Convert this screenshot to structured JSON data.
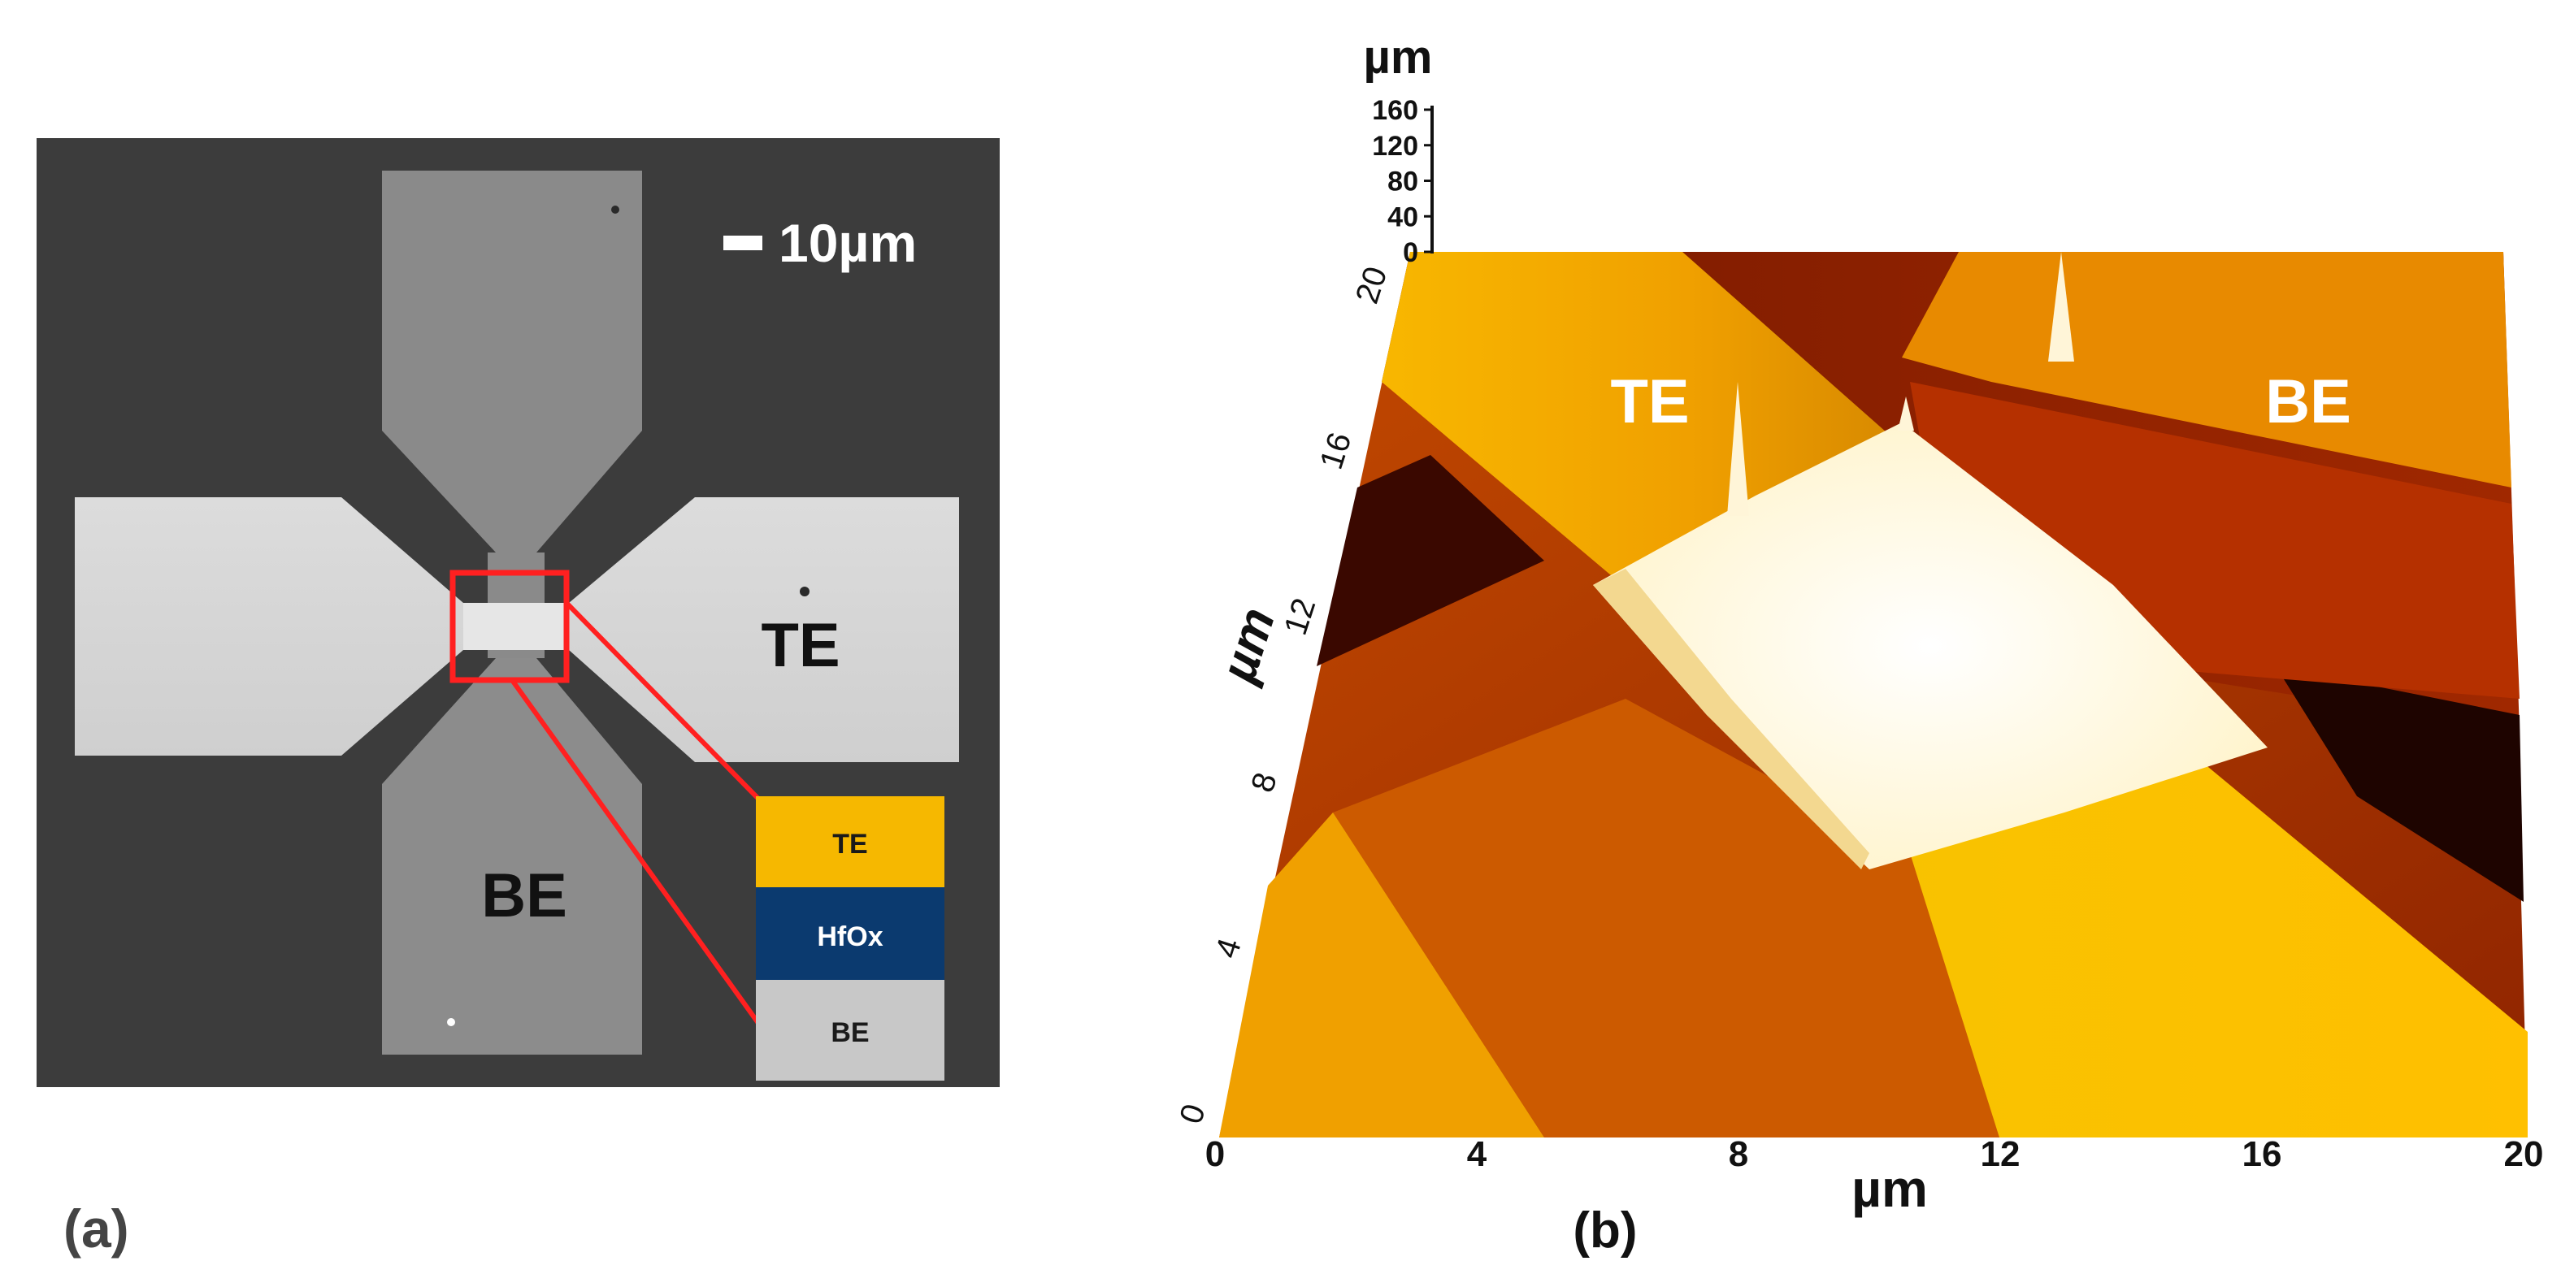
{
  "panel_a": {
    "label": "(a)",
    "scale_bar": "10µm",
    "electrode_te": "TE",
    "electrode_be": "BE",
    "stack": {
      "top": "TE",
      "middle": "HfOx",
      "bottom": "BE"
    },
    "colors": {
      "background": "#3c3c3c",
      "te_pad": "#d4d4d4",
      "be_pad": "#8c8c8c",
      "highlight_box": "#ff2020",
      "stack_te": "#f6b800",
      "stack_hfox": "#0b3a6f",
      "stack_be": "#c8c8c8"
    }
  },
  "panel_b": {
    "label": "(b)",
    "z_axis": {
      "label": "µm",
      "ticks": [
        "160",
        "120",
        "80",
        "40",
        "0"
      ]
    },
    "y_axis": {
      "label": "µm",
      "ticks": [
        "0",
        "4",
        "8",
        "12",
        "16",
        "20"
      ]
    },
    "x_axis": {
      "label": "µm",
      "ticks": [
        "0",
        "4",
        "8",
        "12",
        "16",
        "20"
      ]
    },
    "electrode_te": "TE",
    "electrode_be": "BE",
    "colors": {
      "low": "#2a0000",
      "mid": "#b23a00",
      "high": "#f0a000",
      "peak": "#fffde8"
    }
  }
}
